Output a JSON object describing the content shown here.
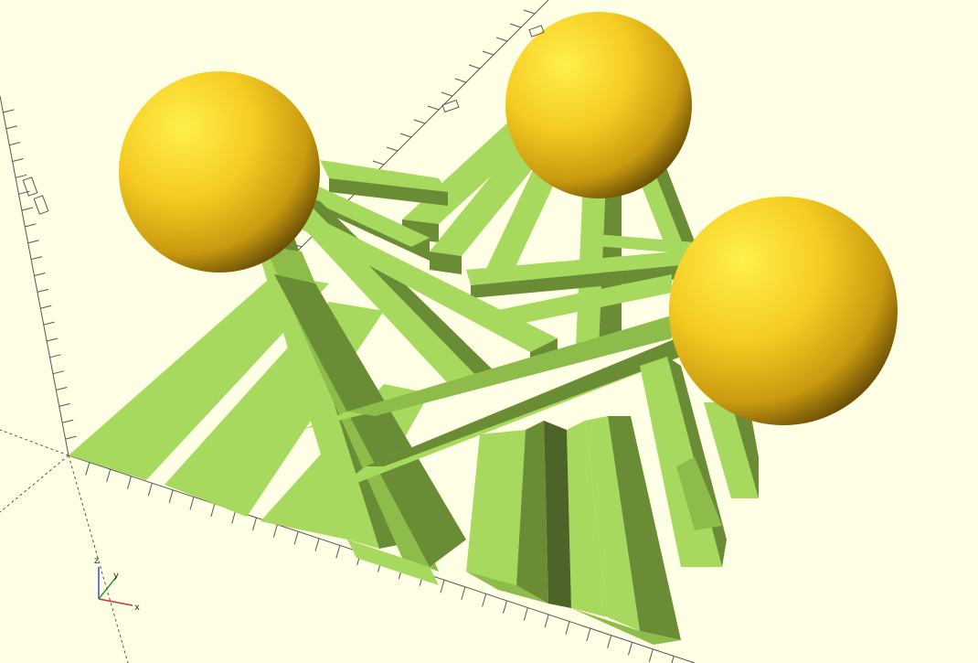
{
  "viewport": {
    "background": "#ffffe5",
    "colors": {
      "bar_light": "#a6d95e",
      "bar_mid": "#8ebc4a",
      "bar_dark": "#6a8c35",
      "bar_darkest": "#4c6428",
      "sphere_highlight": "#fff04a",
      "sphere_mid": "#f3c21c",
      "sphere_dark": "#6b4f05",
      "grid": "#666666"
    },
    "objects": {
      "spheres": 3,
      "bars": "many"
    }
  },
  "axes_indicator": {
    "z_label": "z",
    "y_label": "y",
    "x_label": "x",
    "x_color": "#d23030",
    "y_color": "#2a9a2a",
    "z_color": "#3050d0"
  }
}
